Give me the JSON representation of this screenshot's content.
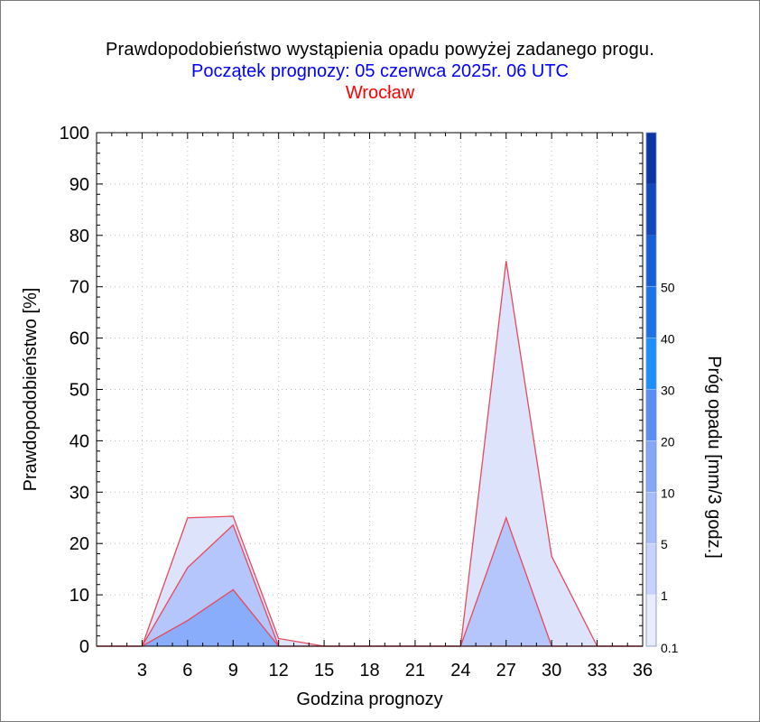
{
  "title": "Prawdopodobieństwo wystąpienia opadu powyżej zadanego progu.",
  "subtitle": "Początek prognozy: 05 czerwca 2025r. 06 UTC",
  "location": "Wrocław",
  "colors": {
    "title": "#000000",
    "subtitle": "#0000ff",
    "location": "#ff0000",
    "series_edge": "#e8485a",
    "grid": "#bdbdbd"
  },
  "chart_data": {
    "type": "area",
    "xlabel": "Godzina prognozy",
    "ylabel": "Prawdopodobieństwo [%]",
    "x_ticks": [
      3,
      6,
      9,
      12,
      15,
      18,
      21,
      24,
      27,
      30,
      33,
      36
    ],
    "xlim": [
      0,
      36
    ],
    "y_ticks": [
      0,
      10,
      20,
      30,
      40,
      50,
      60,
      70,
      80,
      90,
      100
    ],
    "ylim": [
      0,
      100
    ],
    "grid": true,
    "series": [
      {
        "threshold": 0.1,
        "color": "#dce3fb",
        "points": [
          [
            0,
            0
          ],
          [
            3,
            0
          ],
          [
            6,
            25
          ],
          [
            9,
            25.3
          ],
          [
            12,
            1.5
          ],
          [
            15,
            0
          ],
          [
            18,
            0
          ],
          [
            21,
            0
          ],
          [
            24,
            0
          ],
          [
            27,
            75
          ],
          [
            30,
            17.5
          ],
          [
            33,
            0
          ],
          [
            36,
            0
          ]
        ]
      },
      {
        "threshold": 1,
        "color": "#b4c6fb",
        "points": [
          [
            0,
            0
          ],
          [
            3,
            0
          ],
          [
            6,
            15.3
          ],
          [
            9,
            23.6
          ],
          [
            12,
            0
          ],
          [
            15,
            0
          ],
          [
            18,
            0
          ],
          [
            21,
            0
          ],
          [
            24,
            0
          ],
          [
            27,
            25
          ],
          [
            30,
            0
          ],
          [
            33,
            0
          ],
          [
            36,
            0
          ]
        ]
      },
      {
        "threshold": 5,
        "color": "#89adfa",
        "points": [
          [
            0,
            0
          ],
          [
            3,
            0
          ],
          [
            6,
            5
          ],
          [
            9,
            11
          ],
          [
            12,
            0
          ],
          [
            15,
            0
          ],
          [
            18,
            0
          ],
          [
            21,
            0
          ],
          [
            24,
            0
          ],
          [
            27,
            0
          ],
          [
            30,
            0
          ],
          [
            33,
            0
          ],
          [
            36,
            0
          ]
        ]
      }
    ],
    "colorbar": {
      "label": "Próg opadu [mm/3 godz.]",
      "tick_labels": [
        "0.1",
        "1",
        "5",
        "10",
        "20",
        "30",
        "40",
        "50"
      ],
      "colors": [
        "#e8ecfd",
        "#c7d3fb",
        "#a8bcfa",
        "#86a7f7",
        "#5b8ef5",
        "#1a90ff",
        "#1a74e6",
        "#1660d6",
        "#1148bb",
        "#0b34a4"
      ]
    }
  }
}
